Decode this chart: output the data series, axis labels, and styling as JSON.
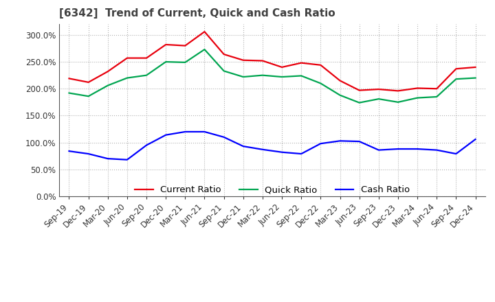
{
  "title": "[6342]  Trend of Current, Quick and Cash Ratio",
  "x_labels": [
    "Sep-19",
    "Dec-19",
    "Mar-20",
    "Jun-20",
    "Sep-20",
    "Dec-20",
    "Mar-21",
    "Jun-21",
    "Sep-21",
    "Dec-21",
    "Mar-22",
    "Jun-22",
    "Sep-22",
    "Dec-22",
    "Mar-23",
    "Jun-23",
    "Sep-23",
    "Dec-23",
    "Mar-24",
    "Jun-24",
    "Sep-24",
    "Dec-24"
  ],
  "current_ratio": [
    219,
    212,
    232,
    257,
    257,
    282,
    280,
    306,
    264,
    253,
    252,
    240,
    248,
    244,
    215,
    197,
    199,
    196,
    201,
    200,
    237,
    240
  ],
  "quick_ratio": [
    192,
    186,
    206,
    220,
    225,
    250,
    249,
    273,
    233,
    222,
    225,
    222,
    224,
    210,
    188,
    174,
    181,
    175,
    183,
    185,
    218,
    220
  ],
  "cash_ratio": [
    84,
    79,
    70,
    68,
    95,
    114,
    120,
    120,
    110,
    93,
    87,
    82,
    79,
    98,
    103,
    102,
    86,
    88,
    88,
    86,
    79,
    106
  ],
  "current_color": "#e8000d",
  "quick_color": "#00a550",
  "cash_color": "#0000ff",
  "ylim": [
    0,
    320
  ],
  "yticks": [
    0,
    50,
    100,
    150,
    200,
    250,
    300
  ],
  "grid_color": "#b0b0b0",
  "bg_color": "#ffffff",
  "title_fontsize": 11,
  "label_fontsize": 8.5,
  "legend_fontsize": 9.5,
  "line_width": 1.6,
  "title_color": "#404040"
}
